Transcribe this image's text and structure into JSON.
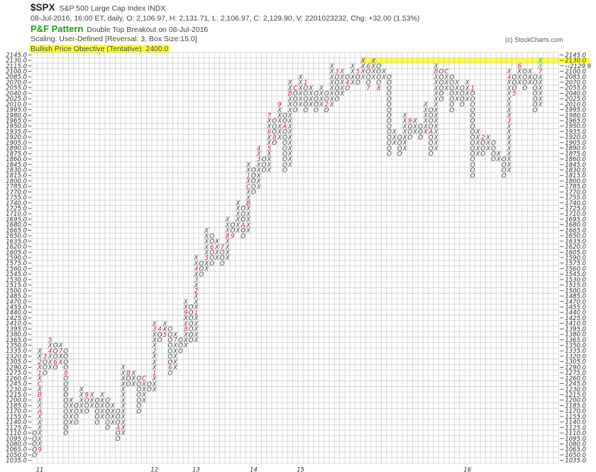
{
  "header": {
    "symbol": "$SPX",
    "description": "S&P 500 Large Cap Index  INDX",
    "quote": "08-Jul-2016, 16:00 ET, daily, O: 2,106.97, H: 2,131.71, L: 2,106.97, C: 2,129.90, V: 2201023232, Chg: +32.00 (1.53%)",
    "pattern_label": "P&F Pattern",
    "pattern_text": "Double Top Breakout on 08-Jul-2016",
    "scaling": "Scaling: User-Defined [Reversal: 3, Box Size:15.0]",
    "objective": "Bullish Price Objective (Tentative): 2400.0",
    "copyright": "(c) StockCharts.com"
  },
  "colors": {
    "x_mark": "#444444",
    "o_mark": "#444444",
    "month_marker": "#d0103a",
    "latest_box": "#22bb22",
    "highlight": "#ffff3c",
    "pattern": "#1aa01a",
    "grid": "#cfcfcf"
  },
  "chart_data": {
    "type": "point-and-figure",
    "box_size": 15,
    "reversal": 3,
    "ylim": [
      1035,
      2145
    ],
    "grid": true,
    "current_price_label": "‹‹2129.9",
    "current_price_row": 2115,
    "highlight_row": 2130,
    "latest_boxes": 2,
    "y_tick_labels": [
      "2145.0",
      "2130.0",
      "2115.0",
      "2100.0",
      "2085.0",
      "2070.0",
      "2055.0",
      "2040.0",
      "2025.0",
      "2010.0",
      "1995.0",
      "1980.0",
      "1965.0",
      "1950.0",
      "1935.0",
      "1920.0",
      "1905.0",
      "1890.0",
      "1875.0",
      "1860.0",
      "1845.0",
      "1830.0",
      "1815.0",
      "1800.0",
      "1785.0",
      "1770.0",
      "1755.0",
      "1740.0",
      "1725.0",
      "1710.0",
      "1695.0",
      "1680.0",
      "1665.0",
      "1650.0",
      "1635.0",
      "1620.0",
      "1605.0",
      "1590.0",
      "1575.0",
      "1560.0",
      "1545.0",
      "1530.0",
      "1515.0",
      "1500.0",
      "1485.0",
      "1470.0",
      "1455.0",
      "1440.0",
      "1425.0",
      "1410.0",
      "1395.0",
      "1380.0",
      "1365.0",
      "1350.0",
      "1335.0",
      "1320.0",
      "1305.0",
      "1290.0",
      "1275.0",
      "1260.0",
      "1245.0",
      "1230.0",
      "1215.0",
      "1200.0",
      "1185.0",
      "1170.0",
      "1155.0",
      "1140.0",
      "1125.0",
      "1110.0",
      "1095.0",
      "1080.0",
      "1065.0",
      "1050.0",
      "1035.0"
    ],
    "columns": [
      {
        "t": "O",
        "from": 1110,
        "to": 1050
      },
      {
        "t": "X",
        "from": 1065,
        "to": 1335,
        "m": {
          "1065": "9",
          "1170": "A",
          "1215": "B",
          "1245": "C",
          "1275": "1",
          "1305": "2"
        },
        "year": "11"
      },
      {
        "t": "O",
        "from": 1320,
        "to": 1275,
        "m": {
          "1320": "3"
        }
      },
      {
        "t": "X",
        "from": 1290,
        "to": 1365,
        "m": {
          "1335": "4",
          "1365": "5"
        }
      },
      {
        "t": "O",
        "from": 1350,
        "to": 1290,
        "m": {
          "1305": "6"
        }
      },
      {
        "t": "X",
        "from": 1305,
        "to": 1350,
        "m": {
          "1335": "7"
        }
      },
      {
        "t": "O",
        "from": 1335,
        "to": 1110,
        "m": {
          "1275": "8"
        }
      },
      {
        "t": "X",
        "from": 1140,
        "to": 1200
      },
      {
        "t": "O",
        "from": 1185,
        "to": 1140
      },
      {
        "t": "X",
        "from": 1170,
        "to": 1230
      },
      {
        "t": "O",
        "from": 1215,
        "to": 1170,
        "m": {
          "1215": "9"
        }
      },
      {
        "t": "X",
        "from": 1185,
        "to": 1215
      },
      {
        "t": "O",
        "from": 1200,
        "to": 1140
      },
      {
        "t": "X",
        "from": 1155,
        "to": 1215
      },
      {
        "t": "O",
        "from": 1200,
        "to": 1125
      },
      {
        "t": "X",
        "from": 1140,
        "to": 1185
      },
      {
        "t": "O",
        "from": 1170,
        "to": 1095,
        "m": {
          "1125": "A"
        }
      },
      {
        "t": "X",
        "from": 1110,
        "to": 1290
      },
      {
        "t": "O",
        "from": 1275,
        "to": 1245,
        "m": {
          "1275": "B"
        }
      },
      {
        "t": "X",
        "from": 1245,
        "to": 1275
      },
      {
        "t": "O",
        "from": 1260,
        "to": 1170
      },
      {
        "t": "X",
        "from": 1200,
        "to": 1260,
        "m": {
          "1260": "C"
        }
      },
      {
        "t": "O",
        "from": 1245,
        "to": 1230
      },
      {
        "t": "X",
        "from": 1230,
        "to": 1410,
        "m": {
          "1275": "1",
          "1335": "2",
          "1395": "3"
        },
        "year": "12"
      },
      {
        "t": "O",
        "from": 1395,
        "to": 1365,
        "m": {
          "1395": "4"
        }
      },
      {
        "t": "X",
        "from": 1380,
        "to": 1410,
        "m": {
          "1380": "5"
        }
      },
      {
        "t": "O",
        "from": 1395,
        "to": 1275,
        "m": {
          "1290": "6"
        }
      },
      {
        "t": "X",
        "from": 1290,
        "to": 1380,
        "m": {
          "1365": "7"
        }
      },
      {
        "t": "O",
        "from": 1365,
        "to": 1335
      },
      {
        "t": "X",
        "from": 1350,
        "to": 1470,
        "m": {
          "1395": "8",
          "1440": "9"
        }
      },
      {
        "t": "O",
        "from": 1455,
        "to": 1365
      },
      {
        "t": "X",
        "from": 1365,
        "to": 1590,
        "m": {
          "1440": "1",
          "1500": "2",
          "1530": "3",
          "1560": "4"
        },
        "year": "13"
      },
      {
        "t": "O",
        "from": 1575,
        "to": 1545
      },
      {
        "t": "X",
        "from": 1560,
        "to": 1665,
        "m": {
          "1590": "5"
        }
      },
      {
        "t": "O",
        "from": 1650,
        "to": 1575,
        "m": {
          "1620": "6"
        }
      },
      {
        "t": "X",
        "from": 1590,
        "to": 1635
      },
      {
        "t": "O",
        "from": 1620,
        "to": 1575,
        "m": {
          "1620": "7"
        }
      },
      {
        "t": "X",
        "from": 1590,
        "to": 1695,
        "m": {
          "1650": "8"
        }
      },
      {
        "t": "O",
        "from": 1680,
        "to": 1650,
        "m": {
          "1650": "9"
        }
      },
      {
        "t": "X",
        "from": 1665,
        "to": 1740
      },
      {
        "t": "O",
        "from": 1725,
        "to": 1650,
        "m": {
          "1680": "A"
        }
      },
      {
        "t": "X",
        "from": 1665,
        "to": 1845,
        "m": {
          "1740": "B",
          "1785": "C",
          "1815": "1"
        }
      },
      {
        "t": "O",
        "from": 1830,
        "to": 1770,
        "year": "14"
      },
      {
        "t": "X",
        "from": 1785,
        "to": 1890,
        "m": {
          "1860": "3",
          "1890": "4"
        }
      },
      {
        "t": "O",
        "from": 1860,
        "to": 1830
      },
      {
        "t": "X",
        "from": 1830,
        "to": 1980,
        "m": {
          "1890": "5",
          "1935": "6",
          "1980": "7"
        }
      },
      {
        "t": "O",
        "from": 1965,
        "to": 1905,
        "m": {
          "1920": "8"
        }
      },
      {
        "t": "X",
        "from": 1920,
        "to": 2010,
        "m": {
          "2010": "9"
        }
      },
      {
        "t": "O",
        "from": 1980,
        "to": 1830,
        "m": {
          "1950": "A"
        }
      },
      {
        "t": "X",
        "from": 1845,
        "to": 2070,
        "m": {
          "2040": "B"
        }
      },
      {
        "t": "O",
        "from": 2055,
        "to": 1995,
        "m": {
          "2055": "C"
        }
      },
      {
        "t": "X",
        "from": 2010,
        "to": 2085,
        "year": "15"
      },
      {
        "t": "O",
        "from": 2070,
        "to": 1995,
        "m": {
          "2070": "1"
        }
      },
      {
        "t": "X",
        "from": 2010,
        "to": 2055
      },
      {
        "t": "O",
        "from": 2040,
        "to": 1995
      },
      {
        "t": "X",
        "from": 2010,
        "to": 2055
      },
      {
        "t": "O",
        "from": 2040,
        "to": 1995,
        "m": {
          "2010": "2"
        }
      },
      {
        "t": "X",
        "from": 2010,
        "to": 2115
      },
      {
        "t": "O",
        "from": 2100,
        "to": 2025,
        "m": {
          "2100": "3"
        }
      },
      {
        "t": "X",
        "from": 2040,
        "to": 2100
      },
      {
        "t": "O",
        "from": 2085,
        "to": 2055,
        "m": {
          "2070": "4"
        }
      },
      {
        "t": "X",
        "from": 2070,
        "to": 2115
      },
      {
        "t": "O",
        "from": 2100,
        "to": 2070,
        "m": {
          "2100": "5"
        }
      },
      {
        "t": "X",
        "from": 2085,
        "to": 2130
      },
      {
        "t": "O",
        "from": 2115,
        "to": 2055,
        "m": {
          "2115": "6",
          "2055": "7"
        }
      },
      {
        "t": "X",
        "from": 2085,
        "to": 2130
      },
      {
        "t": "O",
        "from": 2115,
        "to": 2055,
        "m": {
          "2055": "8"
        }
      },
      {
        "t": "X",
        "from": 2085,
        "to": 2100
      },
      {
        "t": "O",
        "from": 2085,
        "to": 1875
      },
      {
        "t": "X",
        "from": 1905,
        "to": 1935
      },
      {
        "t": "O",
        "from": 1920,
        "to": 1875
      },
      {
        "t": "X",
        "from": 1890,
        "to": 1980
      },
      {
        "t": "O",
        "from": 1965,
        "to": 1920,
        "m": {
          "1965": "9"
        }
      },
      {
        "t": "X",
        "from": 1935,
        "to": 1965
      },
      {
        "t": "O",
        "from": 1950,
        "to": 1920
      },
      {
        "t": "X",
        "from": 1935,
        "to": 2010
      },
      {
        "t": "O",
        "from": 1995,
        "to": 1875,
        "m": {
          "1935": "A"
        }
      },
      {
        "t": "X",
        "from": 1890,
        "to": 2115,
        "m": {
          "2100": "B"
        }
      },
      {
        "t": "O",
        "from": 2100,
        "to": 2025
      },
      {
        "t": "X",
        "from": 2055,
        "to": 2100,
        "m": {
          "2100": "C"
        }
      },
      {
        "t": "O",
        "from": 2085,
        "to": 1995
      },
      {
        "t": "X",
        "from": 2025,
        "to": 2070
      },
      {
        "t": "O",
        "from": 2055,
        "to": 2010
      },
      {
        "t": "X",
        "from": 2025,
        "to": 2070,
        "year": "16"
      },
      {
        "t": "O",
        "from": 2055,
        "to": 1815,
        "m": {
          "2055": "1"
        }
      },
      {
        "t": "X",
        "from": 1875,
        "to": 1935
      },
      {
        "t": "O",
        "from": 1920,
        "to": 1875,
        "m": {
          "1920": "2"
        }
      },
      {
        "t": "X",
        "from": 1890,
        "to": 1920
      },
      {
        "t": "O",
        "from": 1905,
        "to": 1860
      },
      {
        "t": "X",
        "from": 1860,
        "to": 1875
      },
      {
        "t": "O",
        "from": 1860,
        "to": 1815
      },
      {
        "t": "X",
        "from": 1830,
        "to": 2100,
        "m": {
          "1965": "3",
          "2085": "4"
        }
      },
      {
        "t": "O",
        "from": 2085,
        "to": 2040,
        "m": {
          "2040": "5"
        }
      },
      {
        "t": "X",
        "from": 2070,
        "to": 2115,
        "m": {
          "2115": "6"
        }
      },
      {
        "t": "O",
        "from": 2100,
        "to": 2055
      },
      {
        "t": "X",
        "from": 2070,
        "to": 2100
      },
      {
        "t": "O",
        "from": 2085,
        "to": 1995
      },
      {
        "t": "X",
        "from": 2010,
        "to": 2130,
        "m": {
          "2100": "7"
        }
      }
    ]
  }
}
